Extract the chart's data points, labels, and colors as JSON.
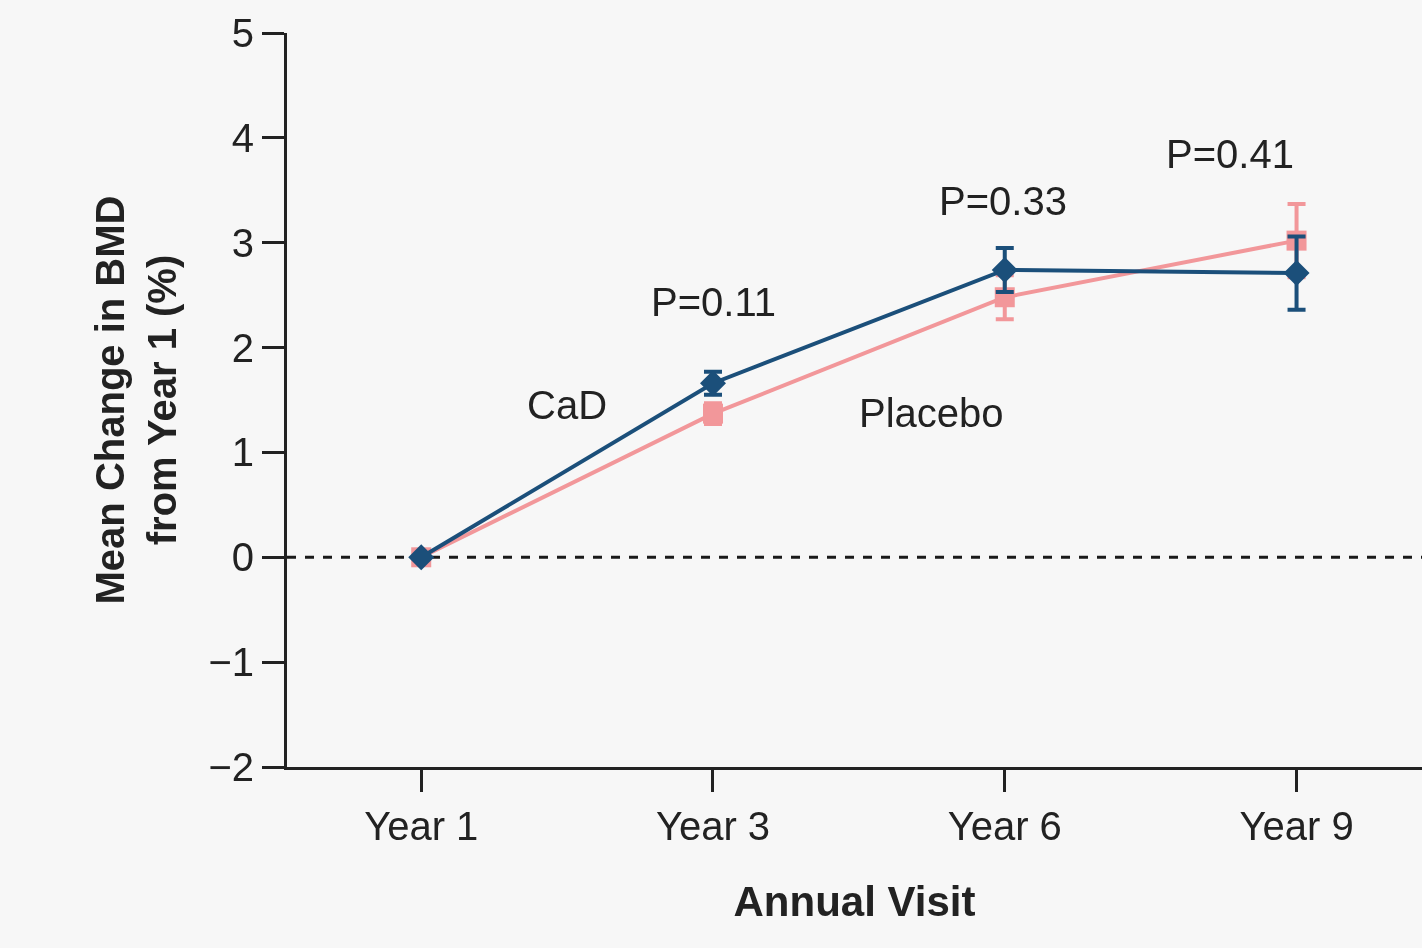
{
  "chart_data": {
    "type": "line",
    "xlabel": "Annual Visit",
    "ylabel": "Mean Change in BMD\nfrom Year 1 (%)",
    "categories": [
      "Year 1",
      "Year 3",
      "Year 6",
      "Year 9"
    ],
    "series": [
      {
        "name": "CaD",
        "color": "#1b4f7a",
        "marker": "diamond",
        "values": [
          0,
          1.66,
          2.74,
          2.71
        ],
        "errors": [
          null,
          0.11,
          0.21,
          0.35
        ]
      },
      {
        "name": "Placebo",
        "color": "#f2979a",
        "marker": "square",
        "values": [
          0,
          1.37,
          2.48,
          3.02
        ],
        "errors": [
          null,
          0.1,
          0.21,
          0.35
        ]
      }
    ],
    "ylim": [
      -2,
      5
    ],
    "yticks": [
      {
        "value": -2,
        "label": "−2"
      },
      {
        "value": -1,
        "label": "−1"
      },
      0,
      1,
      2,
      3,
      4,
      5
    ],
    "ref_lines": [
      {
        "axis": "y",
        "value": 0,
        "color": "#1a1a1a",
        "line_style": "dashed"
      }
    ],
    "annotations": [
      "P=0.11",
      "P=0.33",
      "P=0.41"
    ],
    "grid": false,
    "legend": false
  }
}
